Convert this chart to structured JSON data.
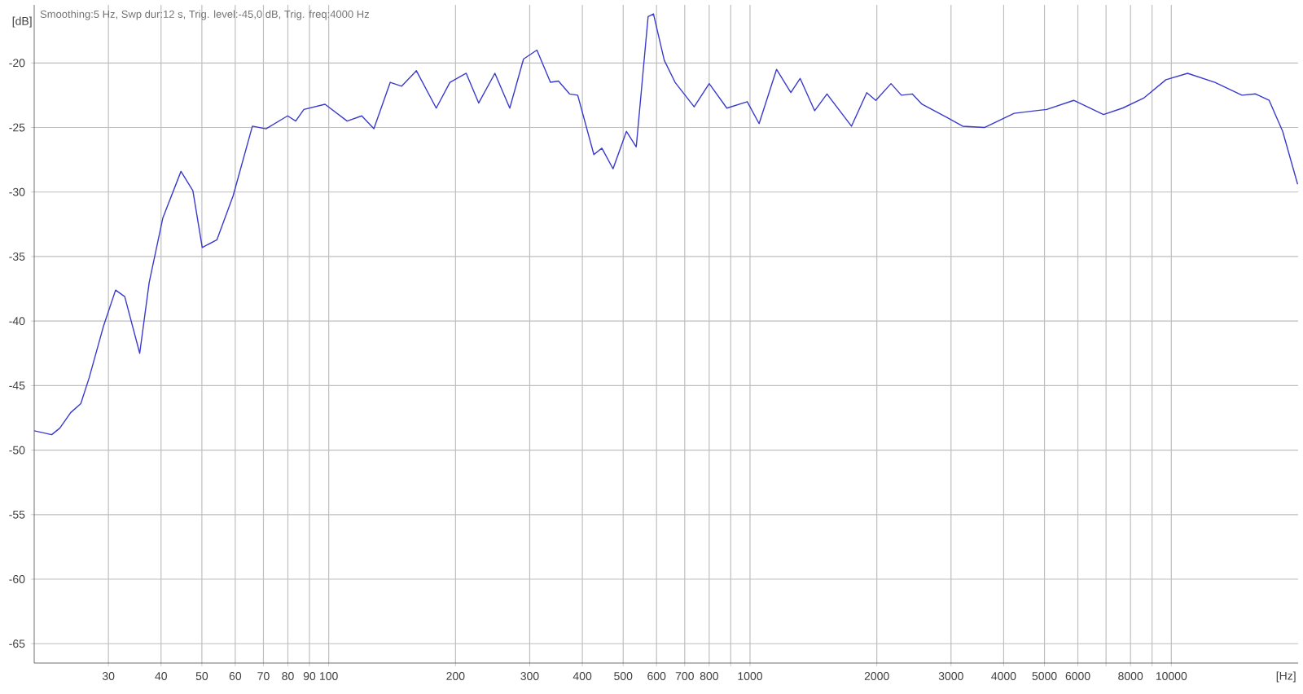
{
  "chart_data": {
    "type": "line",
    "title": "Smoothing:5 Hz, Swp dur:12 s, Trig. level:-45,0 dB, Trig. freq:4000 Hz",
    "xlabel": "[Hz]",
    "ylabel": "[dB]",
    "log": "x",
    "grid": true,
    "color": "#3a3acc",
    "x": [
      20,
      22,
      23,
      24.4,
      25.8,
      27,
      28.3,
      29.2,
      31.2,
      32.8,
      35.6,
      37.5,
      40.4,
      44.6,
      47.6,
      50.1,
      54.3,
      59.3,
      65.9,
      71,
      79.9,
      83.5,
      87.3,
      98,
      110.6,
      119.8,
      128,
      140,
      149,
      161.5,
      180,
      194,
      212,
      227,
      248,
      269,
      290,
      312,
      336,
      351,
      373,
      390,
      426,
      445,
      473,
      509,
      537,
      573,
      590,
      626,
      664,
      737,
      800,
      881,
      985,
      1051,
      1156,
      1250,
      1315,
      1424,
      1523,
      1741,
      1893,
      1989,
      2161,
      2287,
      2427,
      2560,
      2926,
      3198,
      3600,
      4236,
      5060,
      5866,
      6903,
      7660,
      8620,
      9710,
      10930,
      12690,
      14710,
      15850,
      17070,
      18380,
      19950
    ],
    "values": [
      -48.5,
      -48.8,
      -48.3,
      -47.1,
      -46.4,
      -44.4,
      -42.0,
      -40.4,
      -37.6,
      -38.1,
      -42.5,
      -37.0,
      -32.0,
      -28.4,
      -29.9,
      -34.3,
      -33.7,
      -30.3,
      -24.9,
      -25.1,
      -24.1,
      -24.5,
      -23.6,
      -23.2,
      -24.5,
      -24.1,
      -25.1,
      -21.5,
      -21.8,
      -20.6,
      -23.5,
      -21.5,
      -20.8,
      -23.1,
      -20.8,
      -23.5,
      -19.7,
      -19.0,
      -21.5,
      -21.4,
      -22.4,
      -22.5,
      -27.1,
      -26.6,
      -28.2,
      -25.3,
      -26.5,
      -16.4,
      -16.2,
      -19.8,
      -21.5,
      -23.4,
      -21.6,
      -23.5,
      -23.0,
      -24.7,
      -20.5,
      -22.3,
      -21.2,
      -23.7,
      -22.4,
      -24.9,
      -22.3,
      -22.9,
      -21.6,
      -22.5,
      -22.4,
      -23.2,
      -24.2,
      -24.9,
      -25.0,
      -23.9,
      -23.6,
      -22.9,
      -24.0,
      -23.5,
      -22.7,
      -21.3,
      -20.8,
      -21.5,
      -22.5,
      -22.4,
      -22.9,
      -25.3,
      -29.4
    ],
    "xlim": [
      20,
      20000
    ],
    "ylim": [
      -66.5,
      -15.5
    ],
    "xticks": [
      30,
      40,
      50,
      60,
      70,
      80,
      90,
      100,
      200,
      300,
      400,
      500,
      600,
      700,
      800,
      {
        "value": 900,
        "label": null
      },
      1000,
      2000,
      3000,
      4000,
      5000,
      6000,
      {
        "value": 7000,
        "label": null
      },
      8000,
      {
        "value": 9000,
        "label": null
      },
      10000
    ],
    "yticks": [
      -20,
      -25,
      -30,
      -35,
      -40,
      -45,
      -50,
      -55,
      -60,
      -65
    ]
  }
}
